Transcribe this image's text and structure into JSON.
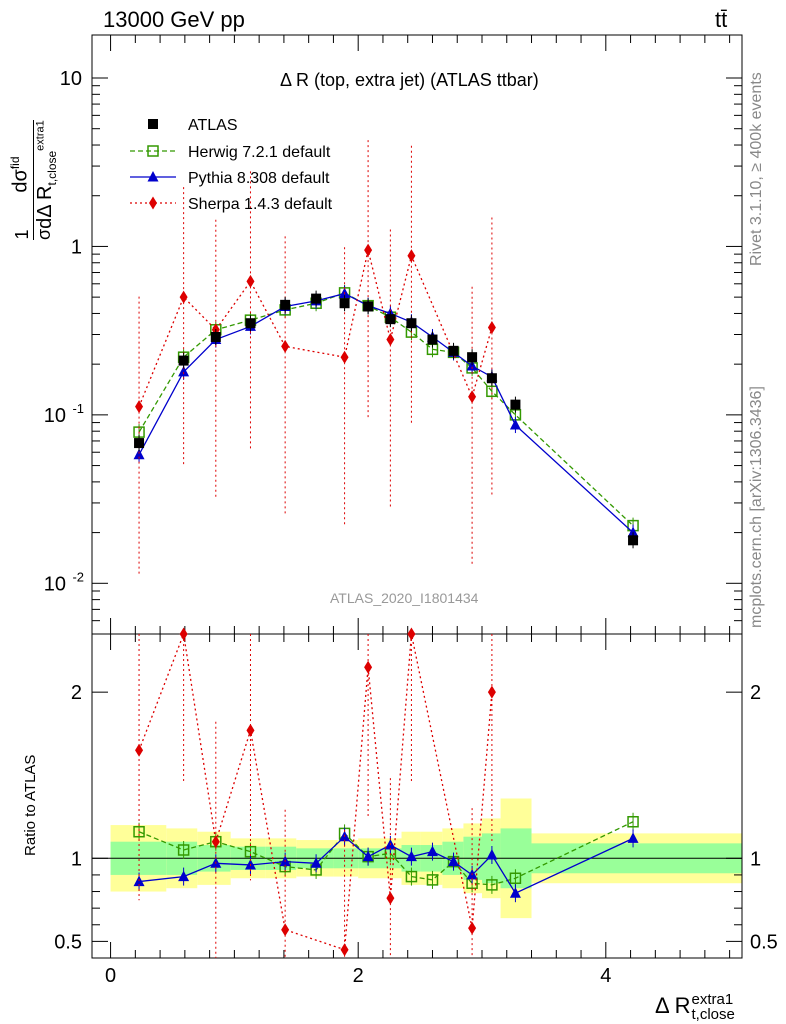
{
  "header": {
    "energy_label": "13000 GeV pp",
    "process_label": "tt̄"
  },
  "side_labels": {
    "rivet": "Rivet 3.1.10, ≥ 400k events",
    "mcplots": "mcplots.cern.ch [arXiv:1306.3436]"
  },
  "chart_data": [
    {
      "type": "scatter",
      "panel": "main",
      "title": "Δ R (top, extra jet) (ATLAS ttbar)",
      "watermark": "ATLAS_2020_I1801434",
      "ylabel": "1/σ dσ^fid / dΔ R_t,close^extra1",
      "yscale": "log",
      "ylim": [
        0.005,
        18
      ],
      "xlim": [
        -0.15,
        5.1
      ],
      "ytick_labels": [
        "10^-2",
        "10^-1",
        "1",
        "10"
      ],
      "x_bins": [
        [
          0.0,
          0.45
        ],
        [
          0.45,
          0.7
        ],
        [
          0.7,
          0.97
        ],
        [
          0.97,
          1.25
        ],
        [
          1.25,
          1.5
        ],
        [
          1.5,
          1.8
        ],
        [
          1.8,
          2.0
        ],
        [
          2.0,
          2.18
        ],
        [
          2.18,
          2.35
        ],
        [
          2.35,
          2.5
        ],
        [
          2.5,
          2.68
        ],
        [
          2.68,
          2.85
        ],
        [
          2.85,
          3.0
        ],
        [
          3.0,
          3.15
        ],
        [
          3.15,
          3.4
        ],
        [
          3.4,
          5.1
        ]
      ],
      "series": [
        {
          "name": "ATLAS",
          "color": "#000000",
          "marker": "square",
          "x": [
            0.23,
            0.59,
            0.85,
            1.13,
            1.41,
            1.66,
            1.89,
            2.08,
            2.26,
            2.43,
            2.6,
            2.77,
            2.92,
            3.08,
            3.27,
            4.22
          ],
          "y": [
            0.068,
            0.21,
            0.29,
            0.35,
            0.45,
            0.49,
            0.46,
            0.44,
            0.37,
            0.35,
            0.28,
            0.24,
            0.22,
            0.165,
            0.115,
            0.018
          ]
        },
        {
          "name": "Herwig 7.2.1 default",
          "color": "#339900",
          "marker": "open-square",
          "line": "dashed",
          "x": [
            0.23,
            0.59,
            0.85,
            1.13,
            1.41,
            1.66,
            1.89,
            2.08,
            2.26,
            2.43,
            2.6,
            2.77,
            2.92,
            3.08,
            3.27,
            4.22
          ],
          "y": [
            0.079,
            0.22,
            0.32,
            0.365,
            0.42,
            0.46,
            0.53,
            0.445,
            0.38,
            0.31,
            0.245,
            0.235,
            0.19,
            0.138,
            0.1,
            0.022
          ]
        },
        {
          "name": "Pythia 8.308 default",
          "color": "#0000cc",
          "marker": "triangle",
          "line": "solid",
          "x": [
            0.23,
            0.59,
            0.85,
            1.13,
            1.41,
            1.66,
            1.89,
            2.08,
            2.26,
            2.43,
            2.6,
            2.77,
            2.92,
            3.08,
            3.27,
            4.22
          ],
          "y": [
            0.058,
            0.18,
            0.28,
            0.335,
            0.44,
            0.475,
            0.525,
            0.445,
            0.4,
            0.355,
            0.29,
            0.235,
            0.195,
            0.168,
            0.087,
            0.02
          ]
        },
        {
          "name": "Sherpa 1.4.3 default",
          "color": "#dd0000",
          "marker": "diamond",
          "line": "dotted",
          "x": [
            0.23,
            0.59,
            0.85,
            1.13,
            1.41,
            1.89,
            2.08,
            2.26,
            2.43,
            2.92,
            3.08
          ],
          "y": [
            0.112,
            0.5,
            0.32,
            0.62,
            0.255,
            0.22,
            0.95,
            0.28,
            0.88,
            0.128,
            0.33
          ]
        }
      ],
      "legend": [
        "ATLAS",
        "Herwig 7.2.1 default",
        "Pythia 8.308 default",
        "Sherpa 1.4.3 default"
      ]
    },
    {
      "type": "scatter",
      "panel": "ratio",
      "ylabel": "Ratio to ATLAS",
      "xlabel": "Δ R_t,close^extra1",
      "ylim": [
        0.4,
        2.35
      ],
      "xlim": [
        -0.15,
        5.1
      ],
      "xticks": [
        0,
        2,
        4
      ],
      "yticks": [
        0.5,
        1,
        2
      ],
      "band_green": [
        0.1,
        0.1,
        0.08,
        0.07,
        0.07,
        0.06,
        0.06,
        0.06,
        0.06,
        0.08,
        0.08,
        0.1,
        0.13,
        0.15,
        0.18,
        0.09
      ],
      "band_yellow": [
        0.2,
        0.18,
        0.16,
        0.12,
        0.12,
        0.11,
        0.11,
        0.12,
        0.12,
        0.16,
        0.16,
        0.18,
        0.21,
        0.24,
        0.36,
        0.15
      ],
      "series": [
        {
          "name": "Herwig 7.2.1 default",
          "x": [
            0.23,
            0.59,
            0.85,
            1.13,
            1.41,
            1.66,
            1.89,
            2.08,
            2.26,
            2.43,
            2.6,
            2.77,
            2.92,
            3.08,
            3.27,
            4.22
          ],
          "y": [
            1.16,
            1.05,
            1.1,
            1.04,
            0.95,
            0.93,
            1.15,
            1.01,
            1.03,
            0.89,
            0.87,
            0.98,
            0.85,
            0.84,
            0.88,
            1.22
          ]
        },
        {
          "name": "Pythia 8.308 default",
          "x": [
            0.23,
            0.59,
            0.85,
            1.13,
            1.41,
            1.66,
            1.89,
            2.08,
            2.26,
            2.43,
            2.6,
            2.77,
            2.92,
            3.08,
            3.27,
            4.22
          ],
          "y": [
            0.86,
            0.89,
            0.97,
            0.96,
            0.98,
            0.97,
            1.13,
            1.01,
            1.08,
            1.01,
            1.04,
            0.98,
            0.9,
            1.02,
            0.79,
            1.12
          ]
        },
        {
          "name": "Sherpa 1.4.3 default",
          "x": [
            0.23,
            0.59,
            0.85,
            1.13,
            1.41,
            1.89,
            2.08,
            2.26,
            2.43,
            2.92,
            3.08
          ],
          "y": [
            1.65,
            2.35,
            1.1,
            1.77,
            0.57,
            0.45,
            2.15,
            0.76,
            2.35,
            0.58,
            2.0
          ]
        }
      ]
    }
  ]
}
